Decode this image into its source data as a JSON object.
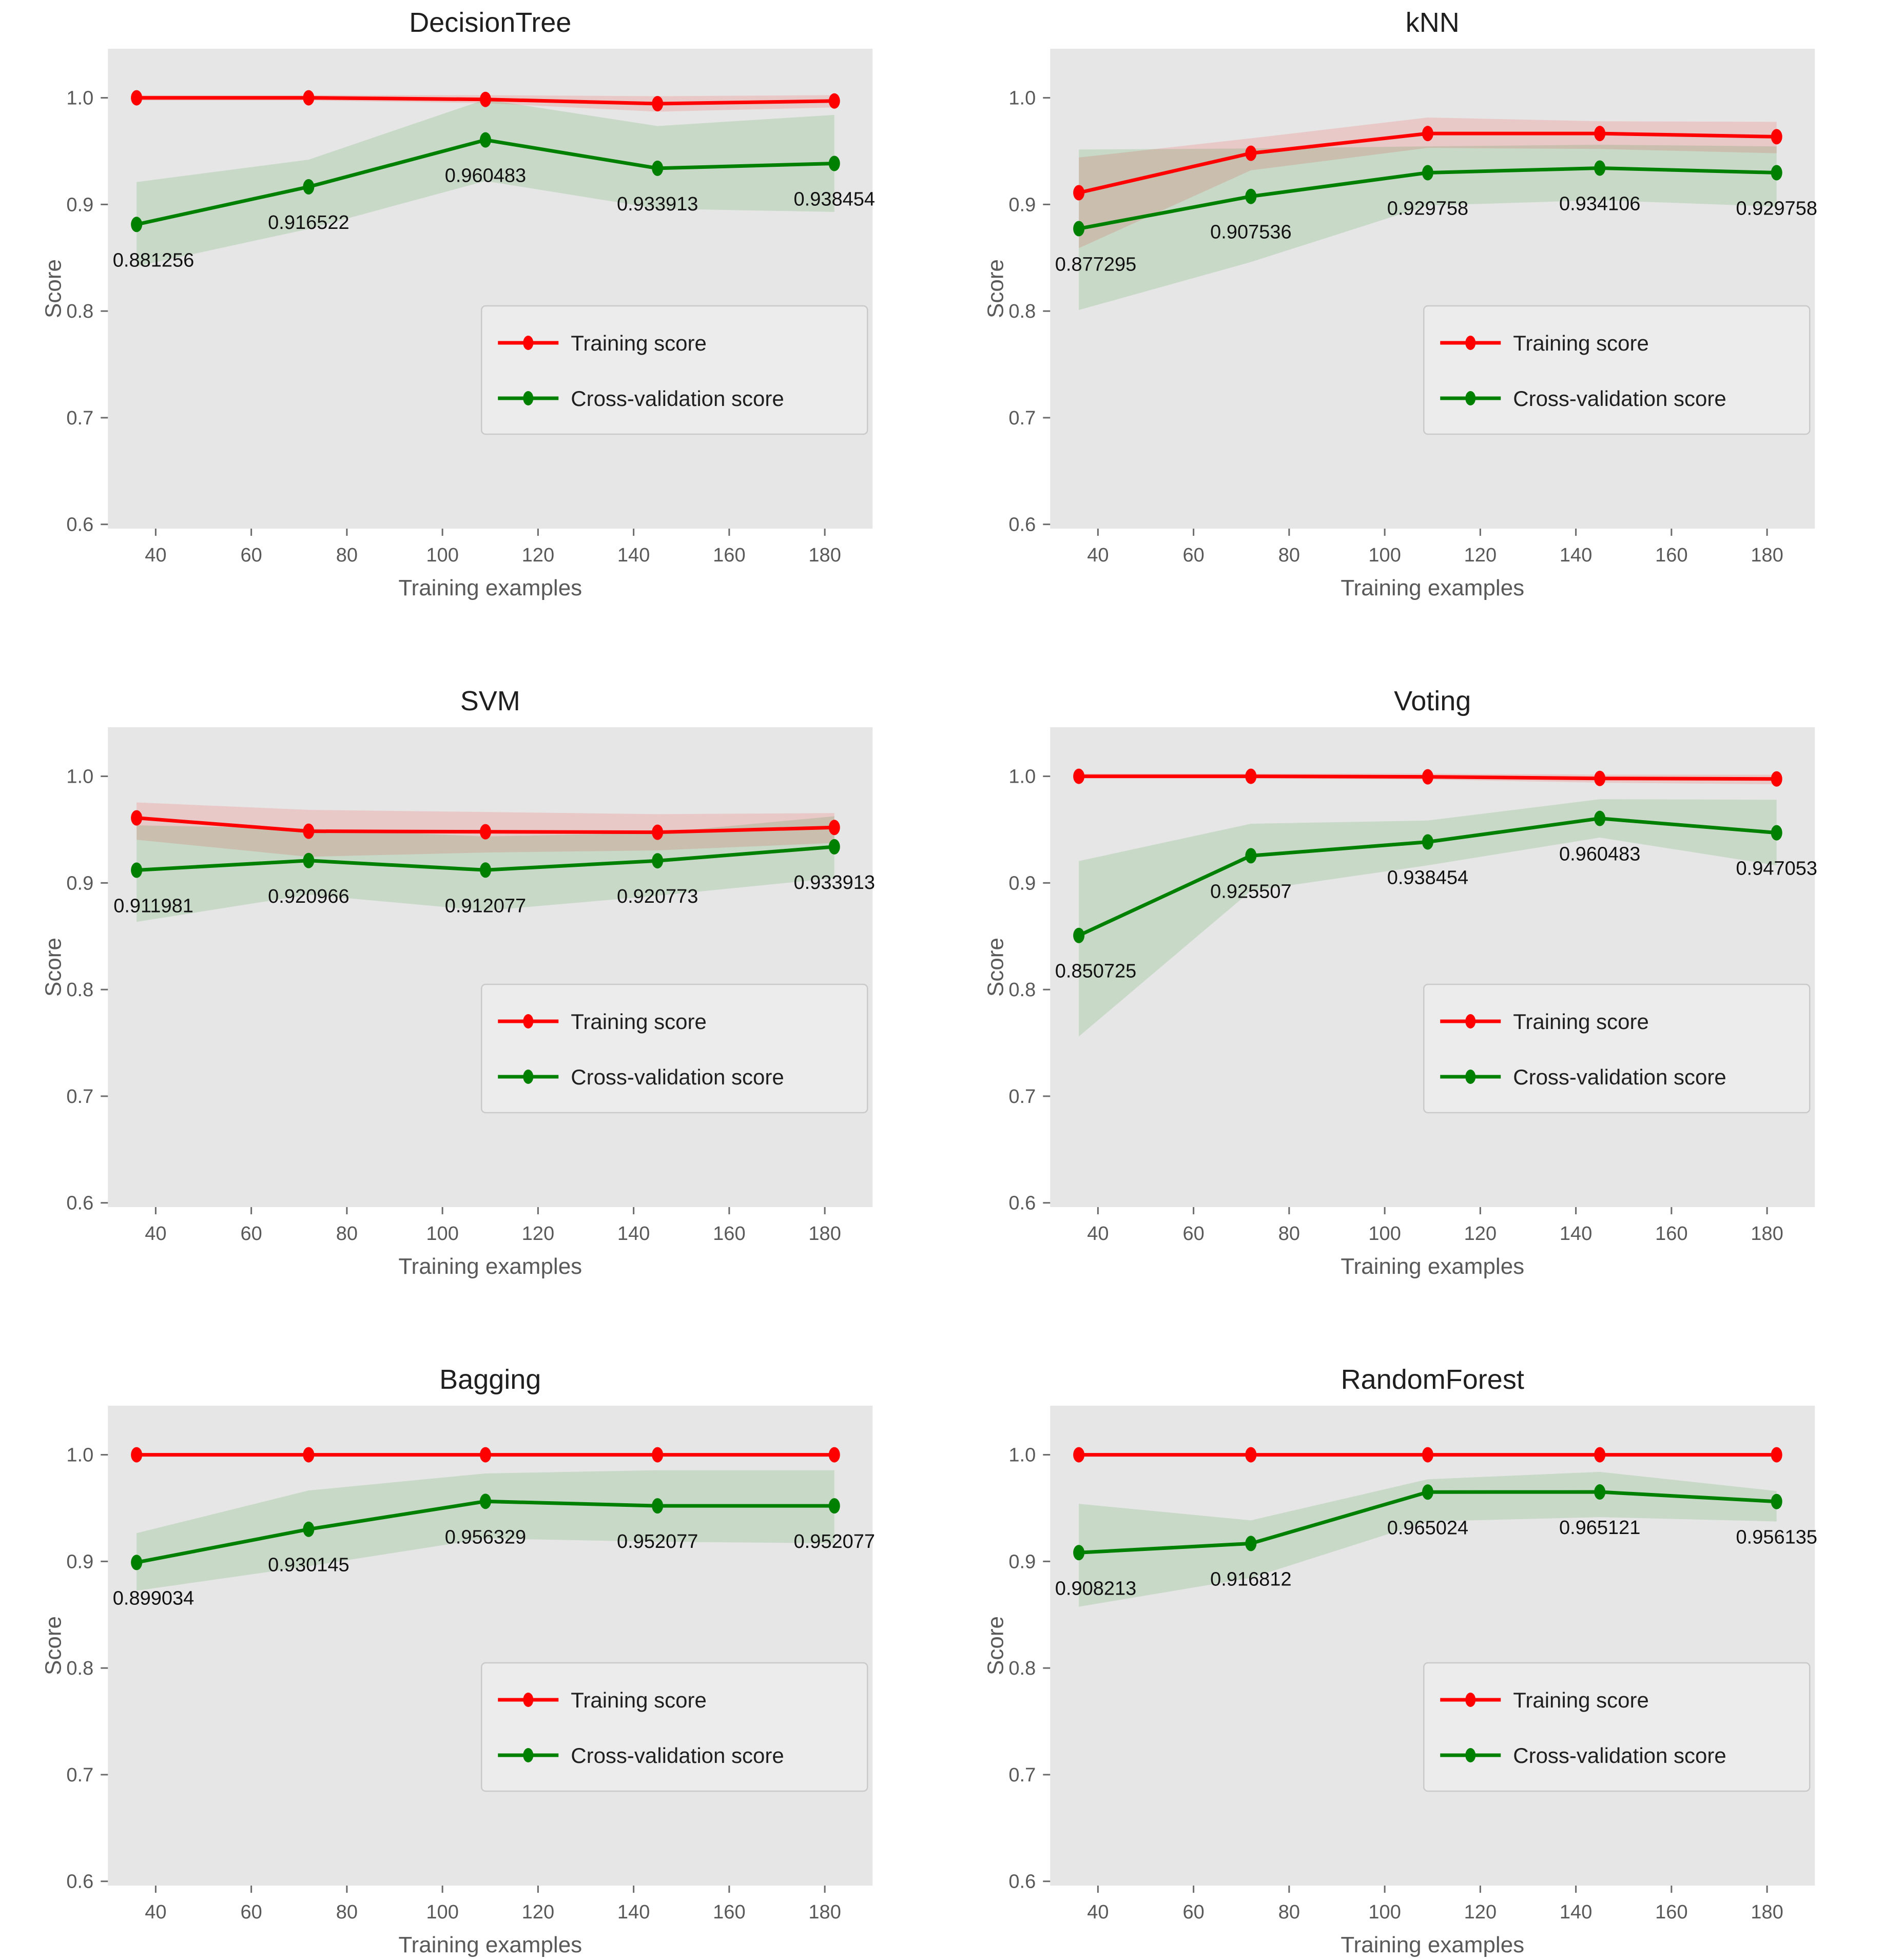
{
  "page": {
    "background": "#ffffff"
  },
  "axes": {
    "xlabel": "Training examples",
    "ylabel": "Score",
    "xticks": [
      40,
      60,
      80,
      100,
      120,
      140,
      160,
      180
    ],
    "yticks": [
      1.0,
      0.9,
      0.8,
      0.7,
      0.6
    ],
    "ytick_labels": [
      "1.0",
      "0.9",
      "0.8",
      "0.7",
      "0.6"
    ],
    "xlim": [
      30,
      190
    ],
    "ylim": [
      0.596,
      1.046
    ],
    "plot_bg": "#e6e6e6",
    "grid": false,
    "tick_color": "#6b6b6b",
    "tick_label_color": "#595959",
    "axis_label_color": "#595959",
    "title_color": "#1f1f1f",
    "value_label_color": "#111111"
  },
  "legend": {
    "position": "lower right",
    "training_label": "Training score",
    "cv_label": "Cross-validation score",
    "bg": "#ececec",
    "border": "#c9c9c9",
    "text_color": "#1f1f1f"
  },
  "colors": {
    "train": "#ff0000",
    "cv": "#008000",
    "train_band": "rgba(255,0,0,0.13)",
    "cv_band": "rgba(0,128,0,0.13)"
  },
  "chart_data": [
    {
      "type": "line",
      "title": "DecisionTree",
      "x": [
        36,
        72,
        109,
        145,
        182
      ],
      "series": [
        {
          "name": "Training score",
          "color_key": "train",
          "values": [
            1.0,
            1.0,
            0.9985,
            0.9945,
            0.997
          ],
          "band_lo": [
            0.9975,
            0.9975,
            0.995,
            0.987,
            0.991
          ],
          "band_hi": [
            1.0025,
            1.0025,
            1.0025,
            1.0015,
            1.0025
          ]
        },
        {
          "name": "Cross-validation score",
          "color_key": "cv",
          "values": [
            0.881256,
            0.916522,
            0.960483,
            0.933913,
            0.938454
          ],
          "band_lo": [
            0.842,
            0.877,
            0.922,
            0.896,
            0.893
          ],
          "band_hi": [
            0.921,
            0.942,
            0.9985,
            0.9735,
            0.984
          ],
          "point_labels": [
            "0.881256",
            "0.916522",
            "0.960483",
            "0.933913",
            "0.938454"
          ]
        }
      ]
    },
    {
      "type": "line",
      "title": "kNN",
      "x": [
        36,
        72,
        109,
        145,
        182
      ],
      "series": [
        {
          "name": "Training score",
          "color_key": "train",
          "values": [
            0.911,
            0.948,
            0.9665,
            0.9665,
            0.9635
          ],
          "band_lo": [
            0.859,
            0.932,
            0.953,
            0.952,
            0.948
          ],
          "band_hi": [
            0.944,
            0.962,
            0.9815,
            0.978,
            0.9775
          ]
        },
        {
          "name": "Cross-validation score",
          "color_key": "cv",
          "values": [
            0.877295,
            0.907536,
            0.929758,
            0.934106,
            0.929758
          ],
          "band_lo": [
            0.801,
            0.846,
            0.899,
            0.904,
            0.898
          ],
          "band_hi": [
            0.9515,
            0.9525,
            0.9545,
            0.956,
            0.9545
          ],
          "point_labels": [
            "0.877295",
            "0.907536",
            "0.929758",
            "0.934106",
            "0.929758"
          ]
        }
      ]
    },
    {
      "type": "line",
      "title": "SVM",
      "x": [
        36,
        72,
        109,
        145,
        182
      ],
      "series": [
        {
          "name": "Training score",
          "color_key": "train",
          "values": [
            0.961,
            0.9485,
            0.948,
            0.9475,
            0.952
          ],
          "band_lo": [
            0.9405,
            0.9245,
            0.9285,
            0.9305,
            0.9375
          ],
          "band_hi": [
            0.9755,
            0.9685,
            0.9665,
            0.9645,
            0.9655
          ]
        },
        {
          "name": "Cross-validation score",
          "color_key": "cv",
          "values": [
            0.911981,
            0.920966,
            0.912077,
            0.920773,
            0.933913
          ],
          "band_lo": [
            0.8635,
            0.889,
            0.874,
            0.888,
            0.9045
          ],
          "band_hi": [
            0.954,
            0.951,
            0.9435,
            0.947,
            0.9625
          ],
          "point_labels": [
            "0.911981",
            "0.920966",
            "0.912077",
            "0.920773",
            "0.933913"
          ]
        }
      ]
    },
    {
      "type": "line",
      "title": "Voting",
      "x": [
        36,
        72,
        109,
        145,
        182
      ],
      "series": [
        {
          "name": "Training score",
          "color_key": "train",
          "values": [
            1.0,
            1.0,
            0.9995,
            0.998,
            0.9975
          ],
          "band_lo": [
            0.998,
            0.998,
            0.997,
            0.994,
            0.9925
          ],
          "band_hi": [
            1.0025,
            1.0025,
            1.0025,
            1.0015,
            1.0015
          ]
        },
        {
          "name": "Cross-validation score",
          "color_key": "cv",
          "values": [
            0.850725,
            0.925507,
            0.938454,
            0.960483,
            0.947053
          ],
          "band_lo": [
            0.756,
            0.8925,
            0.9165,
            0.9425,
            0.9165
          ],
          "band_hi": [
            0.9205,
            0.9555,
            0.9585,
            0.9785,
            0.978
          ],
          "point_labels": [
            "0.850725",
            "0.925507",
            "0.938454",
            "0.960483",
            "0.947053"
          ]
        }
      ]
    },
    {
      "type": "line",
      "title": "Bagging",
      "x": [
        36,
        72,
        109,
        145,
        182
      ],
      "series": [
        {
          "name": "Training score",
          "color_key": "train",
          "values": [
            1.0,
            1.0,
            1.0,
            1.0,
            1.0
          ],
          "band_lo": [
            0.9985,
            0.9985,
            0.9985,
            0.9985,
            0.9985
          ],
          "band_hi": [
            1.0015,
            1.0015,
            1.0015,
            1.0015,
            1.0015
          ]
        },
        {
          "name": "Cross-validation score",
          "color_key": "cv",
          "values": [
            0.899034,
            0.930145,
            0.956329,
            0.952077,
            0.952077
          ],
          "band_lo": [
            0.8725,
            0.8955,
            0.9215,
            0.9185,
            0.917
          ],
          "band_hi": [
            0.9265,
            0.9665,
            0.9825,
            0.9855,
            0.9855
          ],
          "point_labels": [
            "0.899034",
            "0.930145",
            "0.956329",
            "0.952077",
            "0.952077"
          ]
        }
      ]
    },
    {
      "type": "line",
      "title": "RandomForest",
      "x": [
        36,
        72,
        109,
        145,
        182
      ],
      "series": [
        {
          "name": "Training score",
          "color_key": "train",
          "values": [
            1.0,
            1.0,
            1.0,
            1.0,
            1.0
          ],
          "band_lo": [
            0.9985,
            0.9985,
            0.9985,
            0.9985,
            0.9985
          ],
          "band_hi": [
            1.0015,
            1.0015,
            1.0015,
            1.0015,
            1.0015
          ]
        },
        {
          "name": "Cross-validation score",
          "color_key": "cv",
          "values": [
            0.908213,
            0.916812,
            0.965024,
            0.965121,
            0.956135
          ],
          "band_lo": [
            0.8575,
            0.8845,
            0.9375,
            0.9415,
            0.9375
          ],
          "band_hi": [
            0.954,
            0.9385,
            0.977,
            0.984,
            0.966
          ],
          "point_labels": [
            "0.908213",
            "0.916812",
            "0.965024",
            "0.965121",
            "0.956135"
          ]
        }
      ]
    }
  ]
}
